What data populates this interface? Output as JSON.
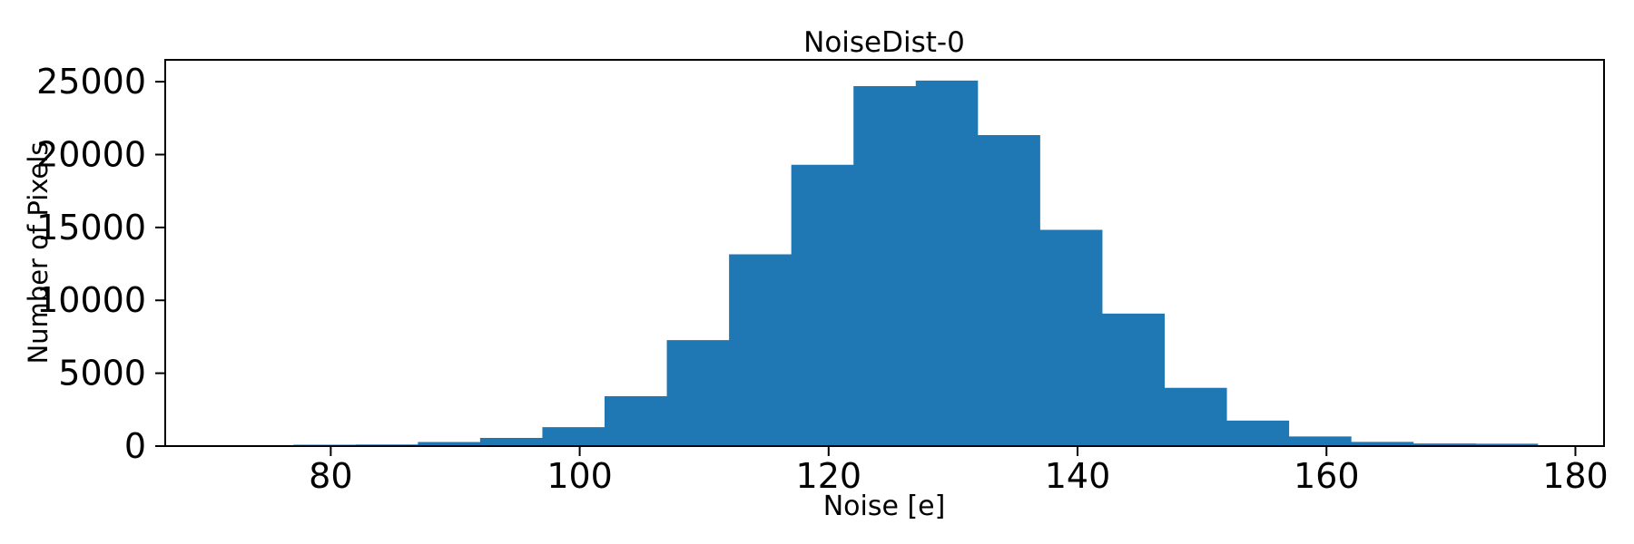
{
  "figure": {
    "background": "#ffffff",
    "text_color": "#000000"
  },
  "chart_data": {
    "type": "bar",
    "subtype": "histogram",
    "title": "NoiseDist-0",
    "xlabel": "Noise [e]",
    "ylabel": "Number of Pixels",
    "bar_color": "#1f77b4",
    "bin_width": 5,
    "bin_edges": [
      77,
      82,
      87,
      92,
      97,
      102,
      107,
      112,
      117,
      122,
      127,
      132,
      137,
      142,
      147,
      152,
      157,
      162,
      167,
      172,
      177
    ],
    "counts": [
      90,
      110,
      280,
      560,
      1300,
      3420,
      7270,
      13160,
      19300,
      24700,
      25080,
      21340,
      14840,
      9090,
      4000,
      1750,
      660,
      290,
      180,
      160
    ],
    "xticks": [
      80,
      100,
      120,
      140,
      160,
      180
    ],
    "yticks": [
      0,
      5000,
      10000,
      15000,
      20000,
      25000
    ],
    "xlim": [
      66.7,
      182.3
    ],
    "ylim": [
      0,
      26500
    ],
    "grid": false,
    "legend": null
  }
}
